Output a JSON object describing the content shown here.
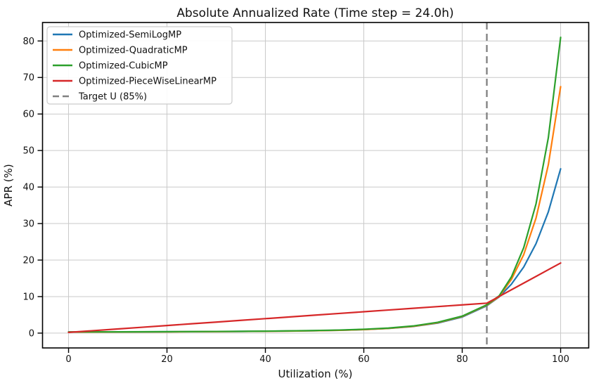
{
  "chart_data": {
    "type": "line",
    "title": "Absolute Annualized Rate (Time step = 24.0h)",
    "xlabel": "Utilization (%)",
    "ylabel": "APR (%)",
    "xlim": [
      -5.29,
      105.71
    ],
    "ylim": [
      -4.06,
      85.06
    ],
    "xticks": [
      0,
      20,
      40,
      60,
      80,
      100
    ],
    "yticks": [
      0,
      10,
      20,
      30,
      40,
      50,
      60,
      70,
      80
    ],
    "grid": true,
    "grid_color": "#c9c9c9",
    "spine_color": "#000000",
    "background_color": "#ffffff",
    "legend_position": "upper-left",
    "x": [
      0,
      5,
      10,
      15,
      20,
      25,
      30,
      35,
      40,
      45,
      50,
      55,
      60,
      65,
      70,
      75,
      80,
      85,
      87.5,
      90,
      92.5,
      95,
      97.5,
      100
    ],
    "series": [
      {
        "name": "Optimized-SemiLogMP",
        "color": "#1f77b4",
        "values": [
          0.3,
          0.31,
          0.33,
          0.35,
          0.37,
          0.4,
          0.43,
          0.47,
          0.52,
          0.58,
          0.66,
          0.78,
          0.97,
          1.27,
          1.8,
          2.75,
          4.4,
          7.5,
          9.9,
          13.4,
          18.1,
          24.5,
          33.2,
          45.0
        ]
      },
      {
        "name": "Optimized-QuadraticMP",
        "color": "#ff7f0e",
        "values": [
          0.28,
          0.29,
          0.31,
          0.33,
          0.35,
          0.38,
          0.41,
          0.45,
          0.5,
          0.56,
          0.64,
          0.77,
          0.97,
          1.3,
          1.85,
          2.85,
          4.55,
          7.65,
          10.0,
          14.7,
          21.5,
          31.5,
          46.1,
          67.5
        ]
      },
      {
        "name": "Optimized-CubicMP",
        "color": "#2ca02c",
        "values": [
          0.32,
          0.33,
          0.35,
          0.37,
          0.39,
          0.42,
          0.45,
          0.49,
          0.54,
          0.61,
          0.7,
          0.84,
          1.05,
          1.38,
          1.95,
          2.95,
          4.65,
          7.75,
          10.2,
          15.4,
          23.4,
          35.4,
          53.5,
          81.0
        ]
      },
      {
        "name": "Optimized-PieceWiseLinearMP",
        "color": "#d62728",
        "values": [
          0.2,
          0.67,
          1.14,
          1.61,
          2.08,
          2.55,
          3.02,
          3.49,
          3.96,
          4.44,
          4.91,
          5.38,
          5.85,
          6.32,
          6.79,
          7.26,
          7.73,
          8.2,
          10.03,
          11.87,
          13.7,
          15.53,
          17.37,
          19.2
        ]
      }
    ],
    "target_line": {
      "x": 85,
      "label": "Target U (85%)",
      "color": "#808080",
      "style": "dashed"
    }
  }
}
